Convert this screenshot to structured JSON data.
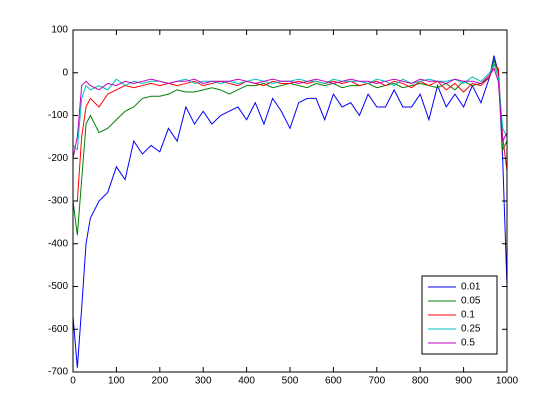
{
  "chart_data": {
    "type": "line",
    "x": [
      0,
      10,
      20,
      30,
      40,
      60,
      80,
      100,
      120,
      140,
      160,
      180,
      200,
      220,
      240,
      260,
      280,
      300,
      320,
      340,
      360,
      380,
      400,
      420,
      440,
      460,
      480,
      500,
      520,
      540,
      560,
      580,
      600,
      620,
      640,
      660,
      680,
      700,
      720,
      740,
      760,
      780,
      800,
      820,
      840,
      860,
      880,
      900,
      920,
      940,
      960,
      970,
      980,
      990,
      1000
    ],
    "series": [
      {
        "name": "0.01",
        "color": "#0000ff",
        "values": [
          -570,
          -690,
          -550,
          -400,
          -340,
          -300,
          -280,
          -220,
          -250,
          -160,
          -190,
          -170,
          -185,
          -130,
          -160,
          -80,
          -120,
          -90,
          -120,
          -100,
          -90,
          -80,
          -110,
          -70,
          -120,
          -60,
          -90,
          -130,
          -70,
          -60,
          -60,
          -110,
          -50,
          -80,
          -70,
          -100,
          -50,
          -80,
          -80,
          -40,
          -80,
          -80,
          -50,
          -110,
          -30,
          -80,
          -50,
          -80,
          -30,
          -70,
          -10,
          40,
          0,
          -200,
          -500
        ]
      },
      {
        "name": "0.05",
        "color": "#008000",
        "values": [
          -300,
          -380,
          -250,
          -120,
          -100,
          -140,
          -130,
          -110,
          -90,
          -80,
          -60,
          -55,
          -55,
          -50,
          -40,
          -45,
          -45,
          -40,
          -35,
          -40,
          -50,
          -40,
          -30,
          -30,
          -25,
          -35,
          -30,
          -25,
          -30,
          -35,
          -25,
          -30,
          -25,
          -35,
          -30,
          -30,
          -25,
          -35,
          -30,
          -25,
          -35,
          -30,
          -25,
          -30,
          -35,
          -25,
          -40,
          -20,
          -30,
          -25,
          -10,
          30,
          0,
          -180,
          -160
        ]
      },
      {
        "name": "0.1",
        "color": "#ff0000",
        "values": [
          -300,
          -300,
          -150,
          -80,
          -60,
          -80,
          -50,
          -40,
          -30,
          -35,
          -30,
          -25,
          -30,
          -25,
          -30,
          -25,
          -20,
          -30,
          -25,
          -20,
          -25,
          -30,
          -20,
          -25,
          -30,
          -20,
          -25,
          -25,
          -20,
          -25,
          -20,
          -25,
          -20,
          -25,
          -20,
          -30,
          -25,
          -20,
          -30,
          -20,
          -25,
          -35,
          -20,
          -30,
          -20,
          -40,
          -25,
          -45,
          -25,
          -30,
          -10,
          20,
          10,
          -150,
          -230
        ]
      },
      {
        "name": "0.25",
        "color": "#00bfbf",
        "values": [
          -170,
          -180,
          -60,
          -30,
          -40,
          -30,
          -40,
          -15,
          -30,
          -20,
          -25,
          -20,
          -20,
          -25,
          -20,
          -15,
          -25,
          -20,
          -20,
          -25,
          -20,
          -25,
          -20,
          -15,
          -20,
          -25,
          -20,
          -20,
          -15,
          -20,
          -20,
          -25,
          -15,
          -20,
          -20,
          -20,
          -25,
          -15,
          -20,
          -30,
          -15,
          -25,
          -20,
          -15,
          -20,
          -20,
          -15,
          -25,
          -10,
          -20,
          0,
          20,
          -10,
          -130,
          -150
        ]
      },
      {
        "name": "0.5",
        "color": "#bf00bf",
        "values": [
          -200,
          -150,
          -30,
          -20,
          -30,
          -40,
          -25,
          -30,
          -20,
          -25,
          -20,
          -15,
          -20,
          -25,
          -20,
          -20,
          -15,
          -25,
          -20,
          -20,
          -20,
          -15,
          -20,
          -25,
          -20,
          -15,
          -20,
          -20,
          -25,
          -20,
          -15,
          -20,
          -25,
          -20,
          -15,
          -20,
          -20,
          -25,
          -20,
          -15,
          -20,
          -25,
          -15,
          -20,
          -20,
          -25,
          -15,
          -20,
          -20,
          -25,
          -5,
          10,
          -20,
          -160,
          -140
        ]
      }
    ],
    "xlim": [
      0,
      1000
    ],
    "xticks": [
      0,
      100,
      200,
      300,
      400,
      500,
      600,
      700,
      800,
      900,
      1000
    ],
    "ylim": [
      -700,
      100
    ],
    "yticks": [
      -700,
      -600,
      -500,
      -400,
      -300,
      -200,
      -100,
      0,
      100
    ],
    "legend": "southeast"
  }
}
